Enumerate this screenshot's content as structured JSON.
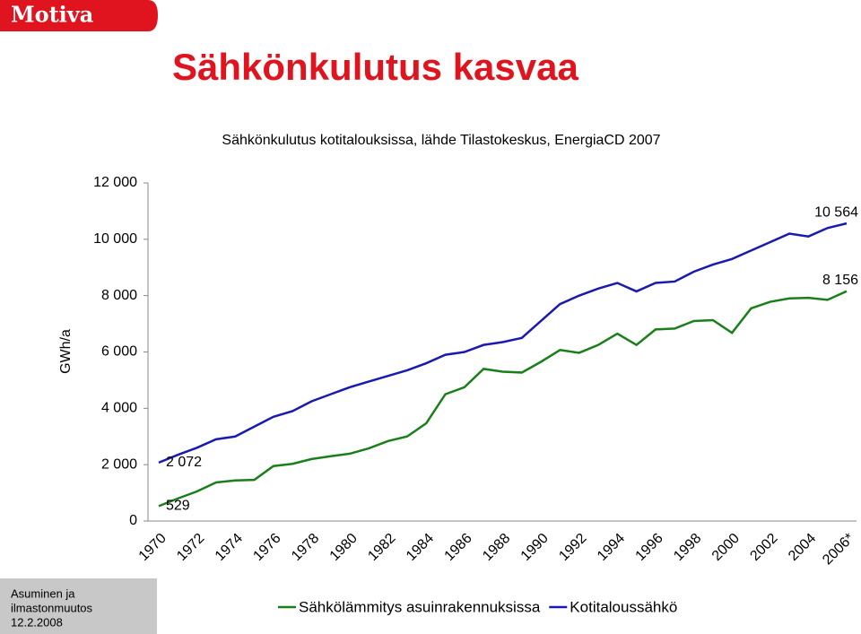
{
  "slide": {
    "logo": "Motiva",
    "title": "Sähkönkulutus kasvaa",
    "footer": [
      "Asuminen ja",
      "ilmastonmuutos",
      "12.2.2008"
    ]
  },
  "chart_data": {
    "type": "line",
    "title": "Sähkönkulutus kotitalouksissa, lähde Tilastokeskus, EnergiaCD 2007",
    "y_label": "GWh/a",
    "categories": [
      "1970",
      null,
      "1972",
      null,
      "1974",
      null,
      "1976",
      null,
      "1978",
      null,
      "1980",
      null,
      "1982",
      null,
      "1984",
      null,
      "1986",
      null,
      "1988",
      null,
      "1990",
      null,
      "1992",
      null,
      "1994",
      null,
      "1996",
      null,
      "1998",
      null,
      "2000",
      null,
      "2002",
      null,
      "2004",
      null,
      "2006*"
    ],
    "ylim": [
      0,
      12000
    ],
    "yticks": [
      0,
      {
        "value": 2000,
        "label": "2 000"
      },
      {
        "value": 4000,
        "label": "4 000"
      },
      {
        "value": 6000,
        "label": "6 000"
      },
      {
        "value": 8000,
        "label": "8 000"
      },
      {
        "value": 10000,
        "label": "10 000"
      },
      {
        "value": 12000,
        "label": "12 000"
      }
    ],
    "grid": false,
    "legend": "bottom",
    "series": [
      {
        "name": "Sähkölämmitys asuinrakennuksissa",
        "color": "#1a7f1a",
        "values": [
          529,
          800,
          1050,
          1370,
          1440,
          1460,
          1950,
          2030,
          2200,
          2300,
          2390,
          2580,
          2840,
          3000,
          3470,
          4500,
          4750,
          5400,
          5300,
          5270,
          5650,
          6070,
          5970,
          6250,
          6650,
          6250,
          6800,
          6830,
          7100,
          7130,
          6680,
          7550,
          7780,
          7900,
          7920,
          7850,
          8156
        ],
        "value_labels": [
          "529",
          null,
          null,
          null,
          null,
          null,
          null,
          null,
          null,
          null,
          null,
          null,
          null,
          null,
          null,
          null,
          null,
          null,
          null,
          null,
          null,
          null,
          null,
          null,
          null,
          null,
          null,
          null,
          null,
          null,
          null,
          null,
          null,
          null,
          null,
          null,
          "8 156"
        ]
      },
      {
        "name": "Kotitaloussähkö",
        "color": "#1a1aaf",
        "values": [
          2072,
          2350,
          2600,
          2900,
          3000,
          3350,
          3700,
          3900,
          4250,
          4500,
          4750,
          4950,
          5150,
          5350,
          5600,
          5900,
          6000,
          6250,
          6350,
          6500,
          7100,
          7700,
          8000,
          8250,
          8450,
          8150,
          8450,
          8500,
          8850,
          9100,
          9300,
          9600,
          9900,
          10200,
          10100,
          10400,
          10564
        ],
        "value_labels": [
          "2 072",
          null,
          null,
          null,
          null,
          null,
          null,
          null,
          null,
          null,
          null,
          null,
          null,
          null,
          null,
          null,
          null,
          null,
          null,
          null,
          null,
          null,
          null,
          null,
          null,
          null,
          null,
          null,
          null,
          null,
          null,
          null,
          null,
          null,
          null,
          null,
          "10 564"
        ]
      }
    ]
  }
}
